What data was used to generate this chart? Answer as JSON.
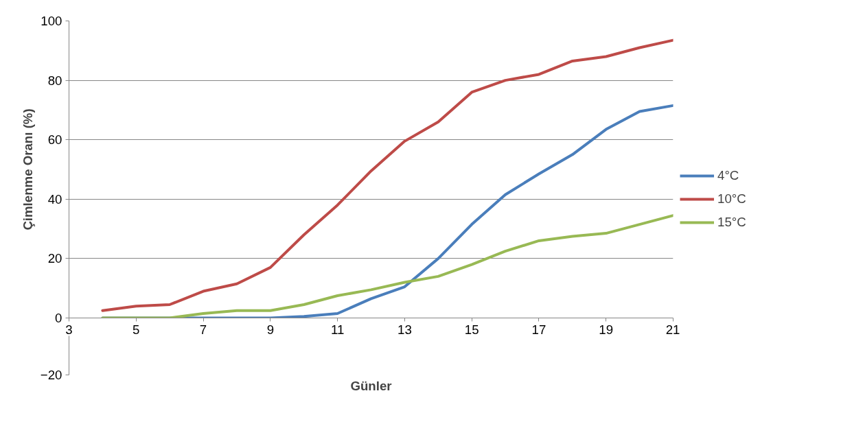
{
  "chart_data": {
    "type": "line",
    "xlabel": "Günler",
    "ylabel": "Çimlenme Oranı (%)",
    "x": [
      4,
      5,
      6,
      7,
      8,
      9,
      10,
      11,
      12,
      13,
      14,
      15,
      16,
      17,
      18,
      19,
      20,
      21
    ],
    "xlim": [
      3,
      21
    ],
    "xticks": [
      3,
      5,
      7,
      9,
      11,
      13,
      15,
      17,
      19,
      21
    ],
    "ylim": [
      -20,
      100
    ],
    "yticks": [
      -20,
      0,
      20,
      40,
      60,
      80,
      100
    ],
    "grid": "y",
    "legend": "right",
    "marker": "none",
    "line_style": "solid",
    "series": [
      {
        "name": "4°C",
        "color": "#4a7ebb",
        "values": [
          0,
          0,
          0,
          0,
          0,
          0,
          0.5,
          1.5,
          6.5,
          10.5,
          20,
          31.5,
          41.5,
          48.5,
          55,
          63.5,
          69.5,
          71.5
        ]
      },
      {
        "name": "10°C",
        "color": "#be4b48",
        "values": [
          2.5,
          4,
          4.5,
          9,
          11.5,
          17,
          28,
          38,
          49.5,
          59.5,
          66,
          76,
          80,
          82,
          86.5,
          88,
          91,
          93.5
        ]
      },
      {
        "name": "15°C",
        "color": "#98b954",
        "values": [
          0,
          0,
          0,
          1.5,
          2.5,
          2.5,
          4.5,
          7.5,
          9.5,
          12,
          14,
          18,
          22.5,
          26,
          27.5,
          28.5,
          31.5,
          34.5
        ]
      }
    ]
  }
}
